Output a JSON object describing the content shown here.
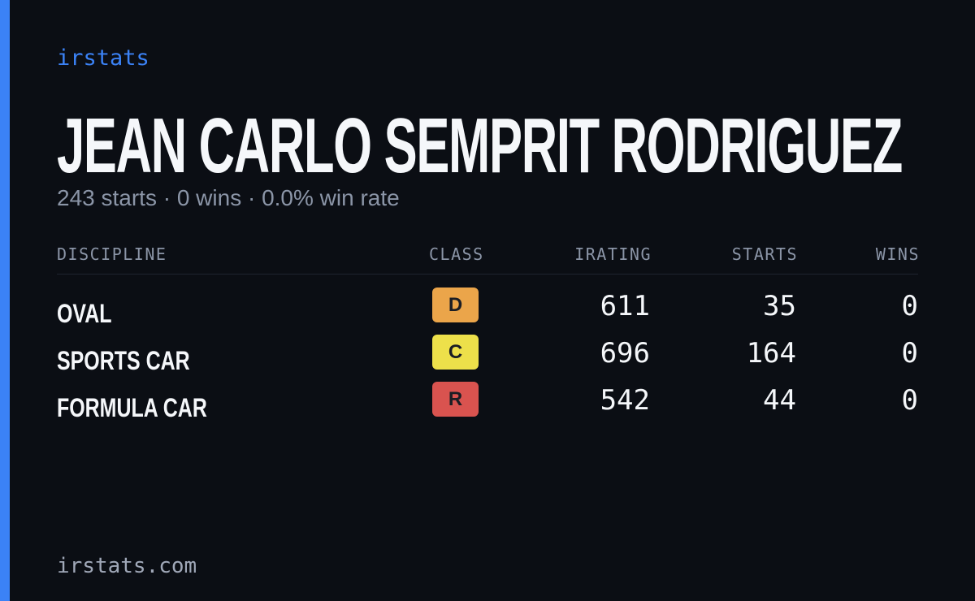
{
  "brand": "irstats",
  "driver": {
    "name": "JEAN CARLO SEMPRIT RODRIGUEZ",
    "summary": "243 starts · 0 wins · 0.0% win rate"
  },
  "table": {
    "headers": [
      "DISCIPLINE",
      "CLASS",
      "IRATING",
      "STARTS",
      "WINS"
    ],
    "rows": [
      {
        "discipline": "OVAL",
        "class": "D",
        "class_color": "#eba54a",
        "irating": 611,
        "starts": 35,
        "wins": 0
      },
      {
        "discipline": "SPORTS CAR",
        "class": "C",
        "class_color": "#ede04a",
        "irating": 696,
        "starts": 164,
        "wins": 0
      },
      {
        "discipline": "FORMULA CAR",
        "class": "R",
        "class_color": "#d9534f",
        "irating": 542,
        "starts": 44,
        "wins": 0
      }
    ]
  },
  "footer": "irstats.com"
}
